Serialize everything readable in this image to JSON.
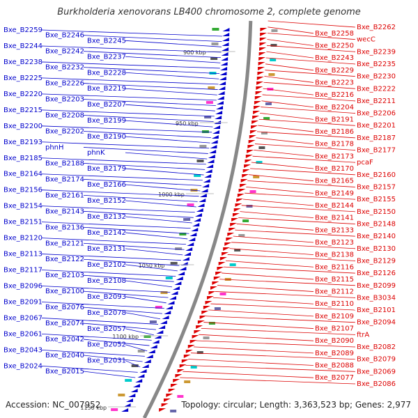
{
  "title": "Burkholderia xenovorans LB400 chromosome 2, complete genome",
  "footer": {
    "accession": "Accession: NC_007952",
    "summary": "Topology: circular; Length: 3,363,523 bp; Genes: 2,977"
  },
  "colors": {
    "forward": "#0000cc",
    "reverse": "#dd0000",
    "backbone": "#888888"
  },
  "ticks": [
    "900 kbp",
    "950 kbp",
    "1000 kbp",
    "1050 kbp",
    "1100 kbp",
    "1150 kbp"
  ],
  "left_labels": [
    "Bxe_B2259",
    "Bxe_B2246",
    "Bxe_B2245",
    "Bxe_B2244",
    "Bxe_B2242",
    "Bxe_B2237",
    "Bxe_B2238",
    "Bxe_B2232",
    "Bxe_B2228",
    "Bxe_B2225",
    "Bxe_B2226",
    "Bxe_B2219",
    "Bxe_B2220",
    "Bxe_B2203",
    "Bxe_B2207",
    "Bxe_B2215",
    "Bxe_B2208",
    "Bxe_B2199",
    "Bxe_B2200",
    "Bxe_B2202",
    "Bxe_B2190",
    "Bxe_B2193",
    "phnH",
    "phnK",
    "Bxe_B2185",
    "Bxe_B2188",
    "Bxe_B2179",
    "Bxe_B2164",
    "Bxe_B2174",
    "Bxe_B2166",
    "Bxe_B2156",
    "Bxe_B2161",
    "Bxe_B2152",
    "Bxe_B2154",
    "Bxe_B2143",
    "Bxe_B2132",
    "Bxe_B2151",
    "Bxe_B2136",
    "Bxe_B2142",
    "Bxe_B2120",
    "Bxe_B2121",
    "Bxe_B2131",
    "Bxe_B2113",
    "Bxe_B2122",
    "Bxe_B2102",
    "Bxe_B2117",
    "Bxe_B2103",
    "Bxe_B2108",
    "Bxe_B2096",
    "Bxe_B2100",
    "Bxe_B2093",
    "Bxe_B2091",
    "Bxe_B2076",
    "Bxe_B2078",
    "Bxe_B2067",
    "Bxe_B2074",
    "Bxe_B2057",
    "Bxe_B2061",
    "Bxe_B2042",
    "Bxe_B2052",
    "Bxe_B2043",
    "Bxe_B2040",
    "Bxe_B2031",
    "Bxe_B2024",
    "Bxe_B2015"
  ],
  "right_labels": [
    "Bxe_B2262",
    "Bxe_B2258",
    "wecC",
    "Bxe_B2250",
    "Bxe_B2239",
    "Bxe_B2243",
    "Bxe_B2235",
    "Bxe_B2229",
    "Bxe_B2230",
    "Bxe_B2223",
    "Bxe_B2222",
    "Bxe_B2216",
    "Bxe_B2211",
    "Bxe_B2204",
    "Bxe_B2206",
    "Bxe_B2191",
    "Bxe_B2201",
    "Bxe_B2186",
    "Bxe_B2187",
    "Bxe_B2178",
    "Bxe_B2177",
    "Bxe_B2173",
    "pcaF",
    "Bxe_B2170",
    "Bxe_B2160",
    "Bxe_B2165",
    "Bxe_B2157",
    "Bxe_B2149",
    "Bxe_B2155",
    "Bxe_B2144",
    "Bxe_B2150",
    "Bxe_B2141",
    "Bxe_B2148",
    "Bxe_B2133",
    "Bxe_B2140",
    "Bxe_B2123",
    "Bxe_B2130",
    "Bxe_B2138",
    "Bxe_B2129",
    "Bxe_B2116",
    "Bxe_B2126",
    "Bxe_B2115",
    "Bxe_B2099",
    "Bxe_B2112",
    "Bxe_B3034",
    "Bxe_B2110",
    "Bxe_B2101",
    "Bxe_B2109",
    "Bxe_B2094",
    "Bxe_B2107",
    "ftrA",
    "Bxe_B2090",
    "Bxe_B2082",
    "Bxe_B2089",
    "Bxe_B2079",
    "Bxe_B2088",
    "Bxe_B2069",
    "Bxe_B2077",
    "Bxe_B2086"
  ]
}
